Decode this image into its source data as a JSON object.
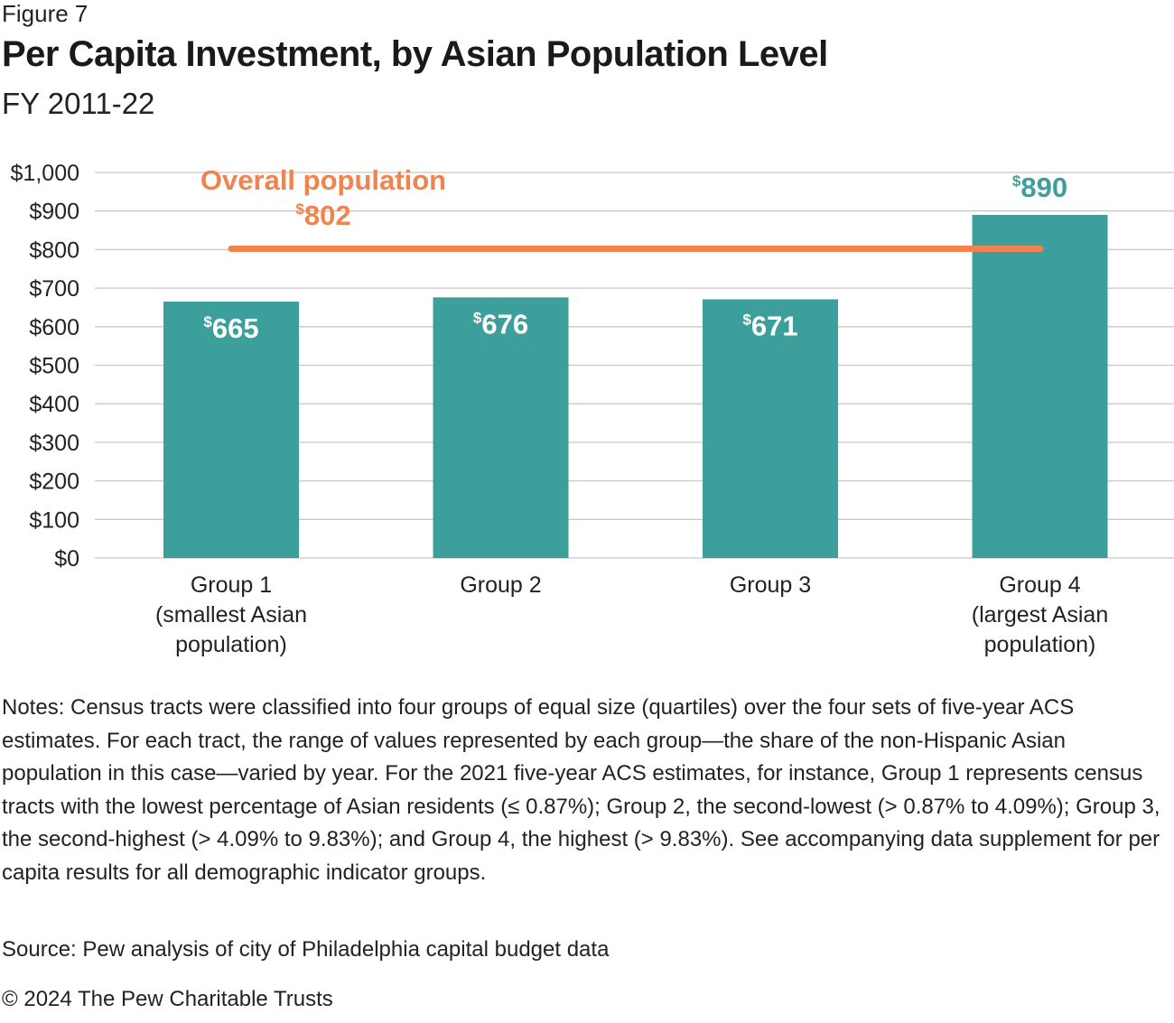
{
  "figure_label": "Figure 7",
  "title": "Per Capita Investment, by Asian Population Level",
  "subtitle": "FY 2011-22",
  "colors": {
    "bar": "#3d9f9b",
    "reference_line": "#f0834e",
    "grid": "#c8c8c8",
    "label_on_bar": "#ffffff"
  },
  "chart_data": {
    "type": "bar",
    "categories": [
      [
        "Group 1",
        "(smallest Asian",
        "population)"
      ],
      [
        "Group 2"
      ],
      [
        "Group 3"
      ],
      [
        "Group 4",
        "(largest Asian",
        "population)"
      ]
    ],
    "values": [
      665,
      676,
      671,
      890
    ],
    "value_labels": [
      "665",
      "676",
      "671",
      "890"
    ],
    "currency_symbol": "$",
    "ylim": [
      0,
      1000
    ],
    "yticks": [
      0,
      100,
      200,
      300,
      400,
      500,
      600,
      700,
      800,
      900,
      1000
    ],
    "ytick_labels": [
      "$0",
      "$100",
      "$200",
      "$300",
      "$400",
      "$500",
      "$600",
      "$700",
      "$800",
      "$900",
      "$1,000"
    ],
    "grid": true,
    "reference_line": {
      "label": "Overall population",
      "value": 802,
      "value_label": "802"
    }
  },
  "notes": "Notes: Census tracts were classified into four groups of equal size (quartiles) over the four sets of five-year ACS estimates. For each tract, the range of values represented by each group—the share of the non-Hispanic Asian population in this case—varied by year. For the 2021 five-year ACS estimates, for instance, Group 1 represents census tracts with the lowest percentage of Asian residents (≤ 0.87%); Group 2, the second-lowest (> 0.87% to 4.09%); Group 3, the second-highest (> 4.09% to 9.83%); and Group 4, the highest (> 9.83%). See accompanying data supplement for per capita results for all demographic indicator groups.",
  "source": "Source: Pew analysis of city of Philadelphia capital budget data",
  "copyright": "© 2024 The Pew Charitable Trusts"
}
